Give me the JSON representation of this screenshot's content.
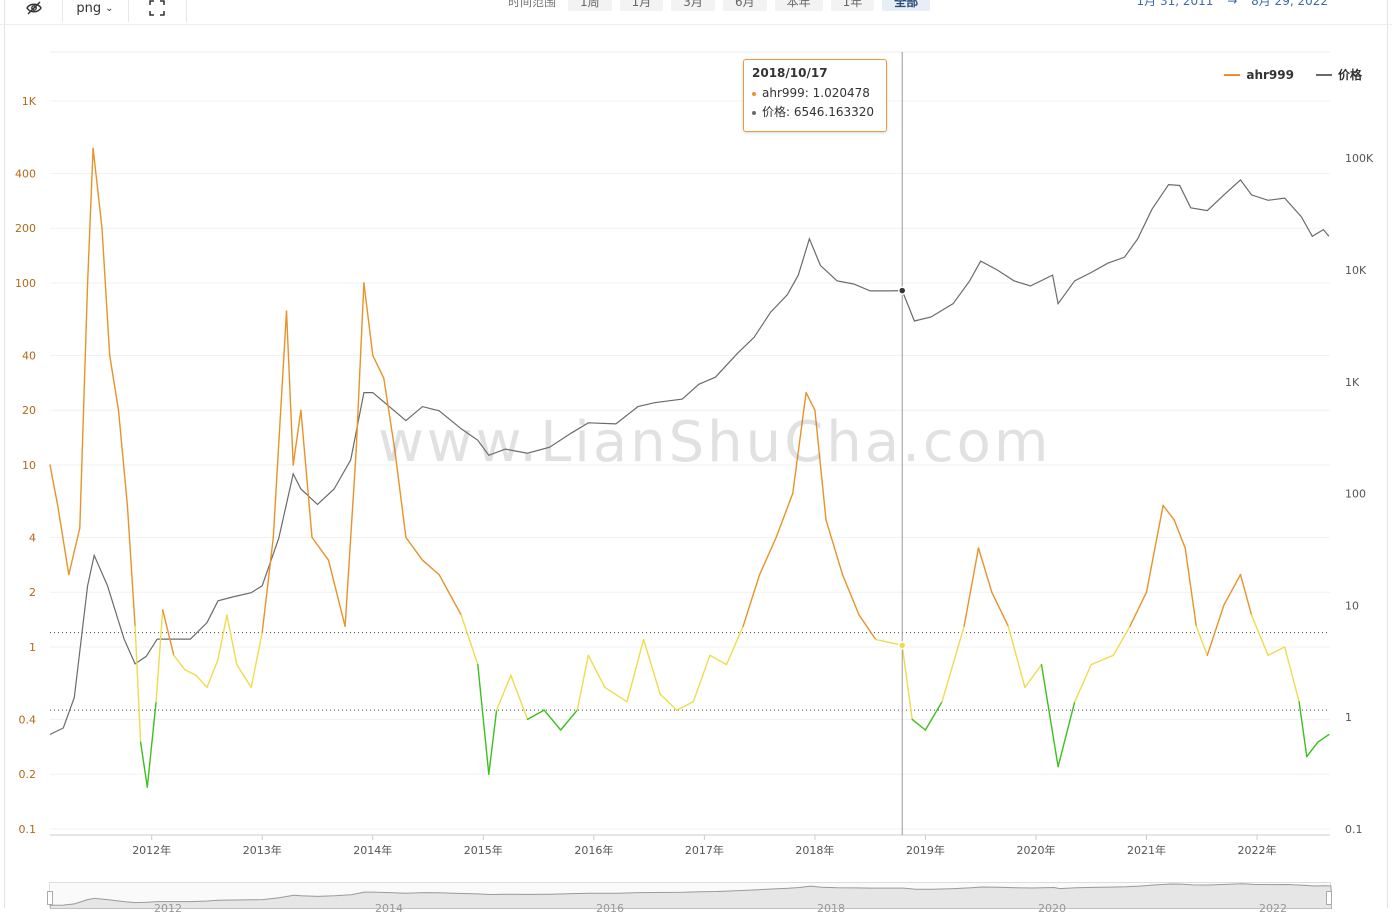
{
  "toolbar": {
    "png_label": "png",
    "range_label": "时间范围",
    "range_options": [
      "1周",
      "1月",
      "3月",
      "6月",
      "本年",
      "1年",
      "全部"
    ],
    "active_range": "全部",
    "date_from": "1月 31, 2011",
    "date_sep": "→",
    "date_to": "8月 29, 2022"
  },
  "watermark": "www.LianShuCha.com",
  "tooltip": {
    "date": "2018/10/17",
    "ahr_label": "ahr999: 1.020478",
    "price_label": "价格: 6546.163320"
  },
  "legend": {
    "series1": "ahr999",
    "series2": "价格"
  },
  "colors": {
    "ahr_orange": "#e8922a",
    "ahr_yellow": "#eedc4c",
    "ahr_green": "#3cbf1e",
    "price_gray": "#6b6b6b",
    "tooltip_border": "#e89a3c"
  },
  "navigator": {
    "labels": [
      "2012",
      "2014",
      "2016",
      "2018",
      "2020",
      "2022"
    ]
  },
  "chart_data": {
    "type": "line",
    "x_axis": {
      "labels": [
        "2012年",
        "2013年",
        "2014年",
        "2015年",
        "2016年",
        "2017年",
        "2018年",
        "2019年",
        "2020年",
        "2021年",
        "2022年"
      ]
    },
    "y_left": {
      "scale": "log",
      "ticks": [
        "0.1",
        "0.2",
        "0.4",
        "1",
        "2",
        "4",
        "10",
        "20",
        "40",
        "100",
        "200",
        "400",
        "1K"
      ]
    },
    "y_right": {
      "scale": "log",
      "ticks": [
        "0.1",
        "1",
        "10",
        "100",
        "1K",
        "10K",
        "100K"
      ]
    },
    "thresholds": [
      1.2,
      0.45
    ],
    "cursor_date": "2018/10/17",
    "series": [
      {
        "name": "ahr999",
        "axis": "left",
        "points": [
          [
            2011.08,
            10
          ],
          [
            2011.15,
            6
          ],
          [
            2011.25,
            2.5
          ],
          [
            2011.35,
            4.5
          ],
          [
            2011.42,
            100
          ],
          [
            2011.47,
            550
          ],
          [
            2011.55,
            200
          ],
          [
            2011.62,
            40
          ],
          [
            2011.7,
            20
          ],
          [
            2011.78,
            6
          ],
          [
            2011.85,
            1.3
          ],
          [
            2011.9,
            0.3
          ],
          [
            2011.96,
            0.17
          ],
          [
            2012.04,
            0.5
          ],
          [
            2012.1,
            1.6
          ],
          [
            2012.2,
            0.9
          ],
          [
            2012.3,
            0.75
          ],
          [
            2012.4,
            0.7
          ],
          [
            2012.5,
            0.6
          ],
          [
            2012.6,
            0.85
          ],
          [
            2012.68,
            1.5
          ],
          [
            2012.77,
            0.8
          ],
          [
            2012.9,
            0.6
          ],
          [
            2013.0,
            1.2
          ],
          [
            2013.1,
            4
          ],
          [
            2013.22,
            70
          ],
          [
            2013.28,
            10
          ],
          [
            2013.35,
            20
          ],
          [
            2013.45,
            4
          ],
          [
            2013.6,
            3
          ],
          [
            2013.75,
            1.3
          ],
          [
            2013.85,
            12
          ],
          [
            2013.92,
            100
          ],
          [
            2014.0,
            40
          ],
          [
            2014.1,
            30
          ],
          [
            2014.2,
            12
          ],
          [
            2014.3,
            4
          ],
          [
            2014.45,
            3
          ],
          [
            2014.6,
            2.5
          ],
          [
            2014.8,
            1.5
          ],
          [
            2014.95,
            0.8
          ],
          [
            2015.05,
            0.2
          ],
          [
            2015.12,
            0.45
          ],
          [
            2015.25,
            0.7
          ],
          [
            2015.4,
            0.4
          ],
          [
            2015.55,
            0.45
          ],
          [
            2015.7,
            0.35
          ],
          [
            2015.85,
            0.45
          ],
          [
            2015.95,
            0.9
          ],
          [
            2016.1,
            0.6
          ],
          [
            2016.3,
            0.5
          ],
          [
            2016.45,
            1.1
          ],
          [
            2016.6,
            0.55
          ],
          [
            2016.75,
            0.45
          ],
          [
            2016.9,
            0.5
          ],
          [
            2017.05,
            0.9
          ],
          [
            2017.2,
            0.8
          ],
          [
            2017.35,
            1.3
          ],
          [
            2017.5,
            2.5
          ],
          [
            2017.65,
            4
          ],
          [
            2017.8,
            7
          ],
          [
            2017.92,
            25
          ],
          [
            2018.0,
            20
          ],
          [
            2018.1,
            5
          ],
          [
            2018.25,
            2.5
          ],
          [
            2018.4,
            1.5
          ],
          [
            2018.55,
            1.1
          ],
          [
            2018.7,
            1.05
          ],
          [
            2018.79,
            1.02
          ],
          [
            2018.88,
            0.4
          ],
          [
            2019.0,
            0.35
          ],
          [
            2019.15,
            0.5
          ],
          [
            2019.35,
            1.3
          ],
          [
            2019.48,
            3.5
          ],
          [
            2019.6,
            2
          ],
          [
            2019.75,
            1.3
          ],
          [
            2019.9,
            0.6
          ],
          [
            2020.05,
            0.8
          ],
          [
            2020.2,
            0.22
          ],
          [
            2020.35,
            0.5
          ],
          [
            2020.5,
            0.8
          ],
          [
            2020.7,
            0.9
          ],
          [
            2020.85,
            1.3
          ],
          [
            2021.0,
            2
          ],
          [
            2021.15,
            6
          ],
          [
            2021.25,
            5
          ],
          [
            2021.35,
            3.5
          ],
          [
            2021.45,
            1.3
          ],
          [
            2021.55,
            0.9
          ],
          [
            2021.7,
            1.7
          ],
          [
            2021.85,
            2.5
          ],
          [
            2021.95,
            1.5
          ],
          [
            2022.1,
            0.9
          ],
          [
            2022.25,
            1
          ],
          [
            2022.38,
            0.5
          ],
          [
            2022.45,
            0.25
          ],
          [
            2022.55,
            0.3
          ],
          [
            2022.65,
            0.33
          ]
        ]
      },
      {
        "name": "价格",
        "axis": "right",
        "points": [
          [
            2011.08,
            0.7
          ],
          [
            2011.2,
            0.8
          ],
          [
            2011.3,
            1.5
          ],
          [
            2011.42,
            15
          ],
          [
            2011.48,
            28
          ],
          [
            2011.6,
            15
          ],
          [
            2011.75,
            5
          ],
          [
            2011.85,
            3
          ],
          [
            2011.95,
            3.5
          ],
          [
            2012.05,
            5
          ],
          [
            2012.2,
            5
          ],
          [
            2012.35,
            5
          ],
          [
            2012.5,
            7
          ],
          [
            2012.6,
            11
          ],
          [
            2012.75,
            12
          ],
          [
            2012.9,
            13
          ],
          [
            2013.0,
            15
          ],
          [
            2013.15,
            40
          ],
          [
            2013.28,
            150
          ],
          [
            2013.35,
            110
          ],
          [
            2013.5,
            80
          ],
          [
            2013.65,
            110
          ],
          [
            2013.8,
            200
          ],
          [
            2013.92,
            800
          ],
          [
            2014.0,
            800
          ],
          [
            2014.15,
            600
          ],
          [
            2014.3,
            450
          ],
          [
            2014.45,
            600
          ],
          [
            2014.6,
            550
          ],
          [
            2014.8,
            380
          ],
          [
            2014.95,
            300
          ],
          [
            2015.05,
            220
          ],
          [
            2015.2,
            250
          ],
          [
            2015.4,
            230
          ],
          [
            2015.6,
            260
          ],
          [
            2015.8,
            350
          ],
          [
            2015.95,
            430
          ],
          [
            2016.2,
            420
          ],
          [
            2016.4,
            600
          ],
          [
            2016.55,
            650
          ],
          [
            2016.8,
            700
          ],
          [
            2016.95,
            950
          ],
          [
            2017.1,
            1100
          ],
          [
            2017.3,
            1800
          ],
          [
            2017.45,
            2500
          ],
          [
            2017.6,
            4200
          ],
          [
            2017.75,
            6000
          ],
          [
            2017.85,
            9000
          ],
          [
            2017.95,
            19000
          ],
          [
            2018.05,
            11000
          ],
          [
            2018.2,
            8000
          ],
          [
            2018.35,
            7500
          ],
          [
            2018.5,
            6500
          ],
          [
            2018.65,
            6500
          ],
          [
            2018.79,
            6546
          ],
          [
            2018.9,
            3500
          ],
          [
            2019.05,
            3800
          ],
          [
            2019.25,
            5000
          ],
          [
            2019.4,
            8000
          ],
          [
            2019.5,
            12000
          ],
          [
            2019.65,
            10000
          ],
          [
            2019.8,
            8000
          ],
          [
            2019.95,
            7200
          ],
          [
            2020.15,
            9000
          ],
          [
            2020.2,
            5000
          ],
          [
            2020.35,
            8000
          ],
          [
            2020.5,
            9500
          ],
          [
            2020.65,
            11500
          ],
          [
            2020.8,
            13000
          ],
          [
            2020.92,
            19000
          ],
          [
            2021.05,
            35000
          ],
          [
            2021.2,
            58000
          ],
          [
            2021.3,
            57000
          ],
          [
            2021.4,
            36000
          ],
          [
            2021.55,
            34000
          ],
          [
            2021.7,
            47000
          ],
          [
            2021.85,
            64000
          ],
          [
            2021.95,
            47000
          ],
          [
            2022.1,
            42000
          ],
          [
            2022.25,
            44000
          ],
          [
            2022.4,
            30000
          ],
          [
            2022.5,
            20000
          ],
          [
            2022.6,
            23000
          ],
          [
            2022.65,
            20000
          ]
        ]
      }
    ]
  }
}
